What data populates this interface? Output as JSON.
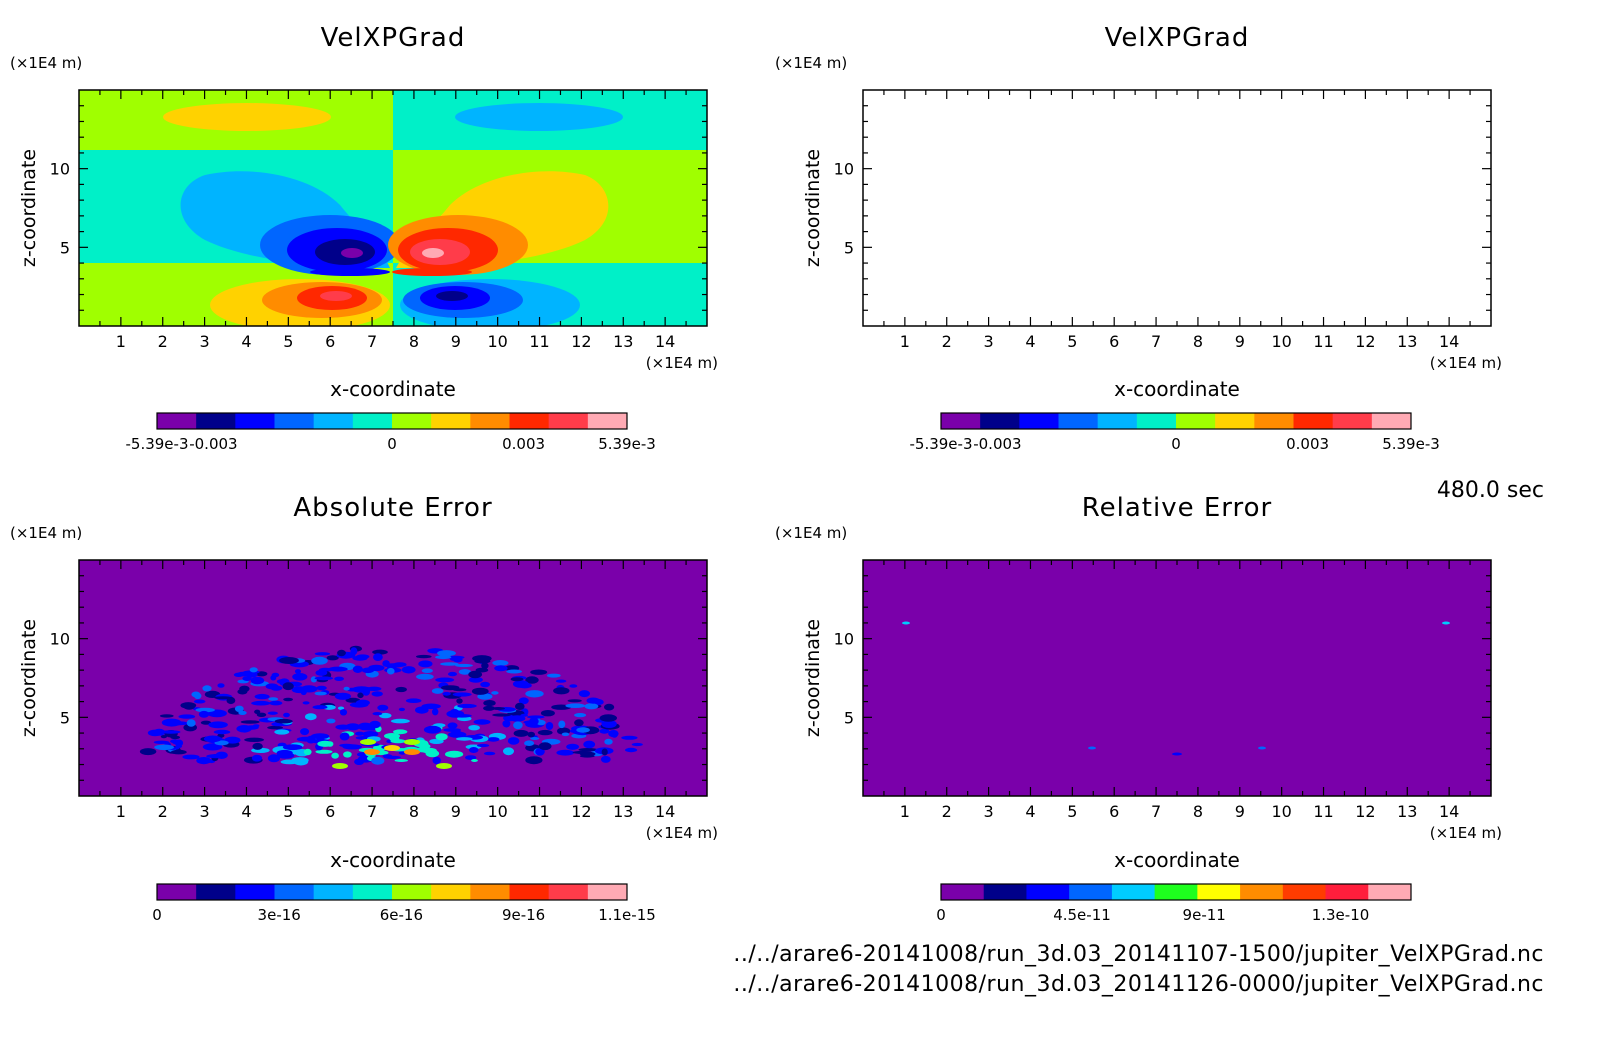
{
  "time_label": "480.0 sec",
  "files": [
    "../../arare6-20141008/run_3d.03_20141107-1500/jupiter_VelXPGrad.nc",
    "../../arare6-20141008/run_3d.03_20141126-0000/jupiter_VelXPGrad.nc"
  ],
  "colors": {
    "scale": [
      "#7a00aa",
      "#00008a",
      "#0000ff",
      "#0066ff",
      "#00b4ff",
      "#00f0c8",
      "#a0ff00",
      "#ffd200",
      "#ff8c00",
      "#ff2800",
      "#ff3c4a",
      "#ffaab4"
    ],
    "rel_scale": [
      "#7a00aa",
      "#00008a",
      "#0000ff",
      "#0066ff",
      "#00ccff",
      "#1eff1e",
      "#ffff00",
      "#ff8c00",
      "#ff3c00",
      "#ff1e3c",
      "#ffaab4"
    ]
  },
  "chart_data": [
    {
      "type": "heatmap",
      "title": "VelXPGrad",
      "xlabel": "x-coordinate",
      "ylabel": "z-coordinate",
      "x_unit": "(×1E4 m)",
      "y_unit": "(×1E4 m)",
      "xlim": [
        0,
        15
      ],
      "ylim": [
        0,
        15
      ],
      "xticks": [
        "1",
        "2",
        "3",
        "4",
        "5",
        "6",
        "7",
        "8",
        "9",
        "10",
        "11",
        "12",
        "13",
        "14"
      ],
      "yticks": [
        "5",
        "10"
      ],
      "colorbar": {
        "range": [
          -0.00539,
          0.00539
        ],
        "labels": [
          "-5.39e-3",
          "-0.003",
          "0",
          "0.003",
          "5.39e-3"
        ]
      }
    },
    {
      "type": "heatmap",
      "title": "VelXPGrad",
      "xlabel": "x-coordinate",
      "ylabel": "z-coordinate",
      "x_unit": "(×1E4 m)",
      "y_unit": "(×1E4 m)",
      "xlim": [
        0,
        15
      ],
      "ylim": [
        0,
        15
      ],
      "xticks": [
        "1",
        "2",
        "3",
        "4",
        "5",
        "6",
        "7",
        "8",
        "9",
        "10",
        "11",
        "12",
        "13",
        "14"
      ],
      "yticks": [
        "5",
        "10"
      ],
      "colorbar": {
        "range": [
          -0.00539,
          0.00539
        ],
        "labels": [
          "-5.39e-3",
          "-0.003",
          "0",
          "0.003",
          "5.39e-3"
        ]
      }
    },
    {
      "type": "heatmap",
      "title": "Absolute Error",
      "xlabel": "x-coordinate",
      "ylabel": "z-coordinate",
      "x_unit": "(×1E4 m)",
      "y_unit": "(×1E4 m)",
      "xlim": [
        0,
        15
      ],
      "ylim": [
        0,
        15
      ],
      "xticks": [
        "1",
        "2",
        "3",
        "4",
        "5",
        "6",
        "7",
        "8",
        "9",
        "10",
        "11",
        "12",
        "13",
        "14"
      ],
      "yticks": [
        "5",
        "10"
      ],
      "colorbar": {
        "range": [
          0,
          1.1e-15
        ],
        "labels": [
          "0",
          "3e-16",
          "6e-16",
          "9e-16",
          "1.1e-15"
        ]
      }
    },
    {
      "type": "heatmap",
      "title": "Relative Error",
      "xlabel": "x-coordinate",
      "ylabel": "z-coordinate",
      "x_unit": "(×1E4 m)",
      "y_unit": "(×1E4 m)",
      "xlim": [
        0,
        15
      ],
      "ylim": [
        0,
        15
      ],
      "xticks": [
        "1",
        "2",
        "3",
        "4",
        "5",
        "6",
        "7",
        "8",
        "9",
        "10",
        "11",
        "12",
        "13",
        "14"
      ],
      "yticks": [
        "5",
        "10"
      ],
      "colorbar": {
        "range": [
          0,
          1.4e-10
        ],
        "labels": [
          "0",
          "4.5e-11",
          "9e-11",
          "1.3e-10"
        ]
      }
    }
  ]
}
